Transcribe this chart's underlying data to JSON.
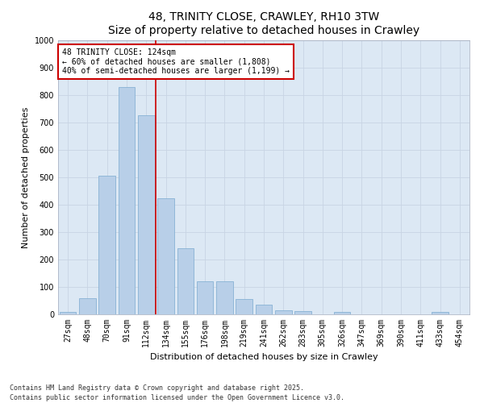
{
  "title": "48, TRINITY CLOSE, CRAWLEY, RH10 3TW",
  "subtitle": "Size of property relative to detached houses in Crawley",
  "xlabel": "Distribution of detached houses by size in Crawley",
  "ylabel": "Number of detached properties",
  "categories": [
    "27sqm",
    "48sqm",
    "70sqm",
    "91sqm",
    "112sqm",
    "134sqm",
    "155sqm",
    "176sqm",
    "198sqm",
    "219sqm",
    "241sqm",
    "262sqm",
    "283sqm",
    "305sqm",
    "326sqm",
    "347sqm",
    "369sqm",
    "390sqm",
    "411sqm",
    "433sqm",
    "454sqm"
  ],
  "values": [
    10,
    60,
    507,
    828,
    725,
    425,
    240,
    120,
    120,
    57,
    36,
    15,
    13,
    0,
    10,
    0,
    0,
    0,
    0,
    10,
    0
  ],
  "bar_color": "#b8cfe8",
  "bar_edge_color": "#7aaad0",
  "property_line_x": 4.5,
  "annotation_title": "48 TRINITY CLOSE: 124sqm",
  "annotation_line1": "← 60% of detached houses are smaller (1,808)",
  "annotation_line2": "40% of semi-detached houses are larger (1,199) →",
  "annotation_box_color": "#ffffff",
  "annotation_box_edge_color": "#cc0000",
  "vline_color": "#cc0000",
  "ylim": [
    0,
    1000
  ],
  "yticks": [
    0,
    100,
    200,
    300,
    400,
    500,
    600,
    700,
    800,
    900,
    1000
  ],
  "grid_color": "#c8d4e4",
  "bg_color": "#dce8f4",
  "fig_bg_color": "#ffffff",
  "footer": "Contains HM Land Registry data © Crown copyright and database right 2025.\nContains public sector information licensed under the Open Government Licence v3.0.",
  "title_fontsize": 10,
  "xlabel_fontsize": 8,
  "ylabel_fontsize": 8,
  "tick_fontsize": 7,
  "footer_fontsize": 6,
  "annot_fontsize": 7
}
